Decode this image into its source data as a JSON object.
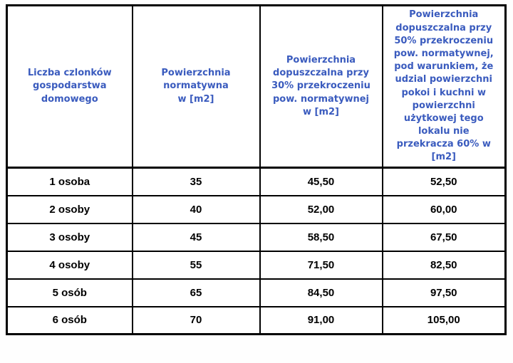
{
  "colors": {
    "header_text": "#3a5bbe",
    "body_text": "#000000",
    "border": "#000000",
    "background": "#ffffff"
  },
  "table": {
    "headers": [
      "Liczba czlonków\ngospodarstwa\ndomowego",
      "Powierzchnia\nnormatywna\nw [m2]",
      "Powierzchnia\ndopuszczalna przy\n30% przekroczeniu\npow. normatywnej\nw [m2]",
      "Powierzchnia\ndopuszczalna przy\n50% przekroczeniu\npow. normatywnej,\npod warunkiem, że\nudzial powierzchni\npokoi i kuchni w\npowierzchni\nużytkowej tego\nlokalu nie\nprzekracza 60% w\n[m2]"
    ],
    "rows": [
      [
        "1 osoba",
        "35",
        "45,50",
        "52,50"
      ],
      [
        "2 osoby",
        "40",
        "52,00",
        "60,00"
      ],
      [
        "3 osoby",
        "45",
        "58,50",
        "67,50"
      ],
      [
        "4 osoby",
        "55",
        "71,50",
        "82,50"
      ],
      [
        "5 osób",
        "65",
        "84,50",
        "97,50"
      ],
      [
        "6 osób",
        "70",
        "91,00",
        "105,00"
      ]
    ]
  }
}
